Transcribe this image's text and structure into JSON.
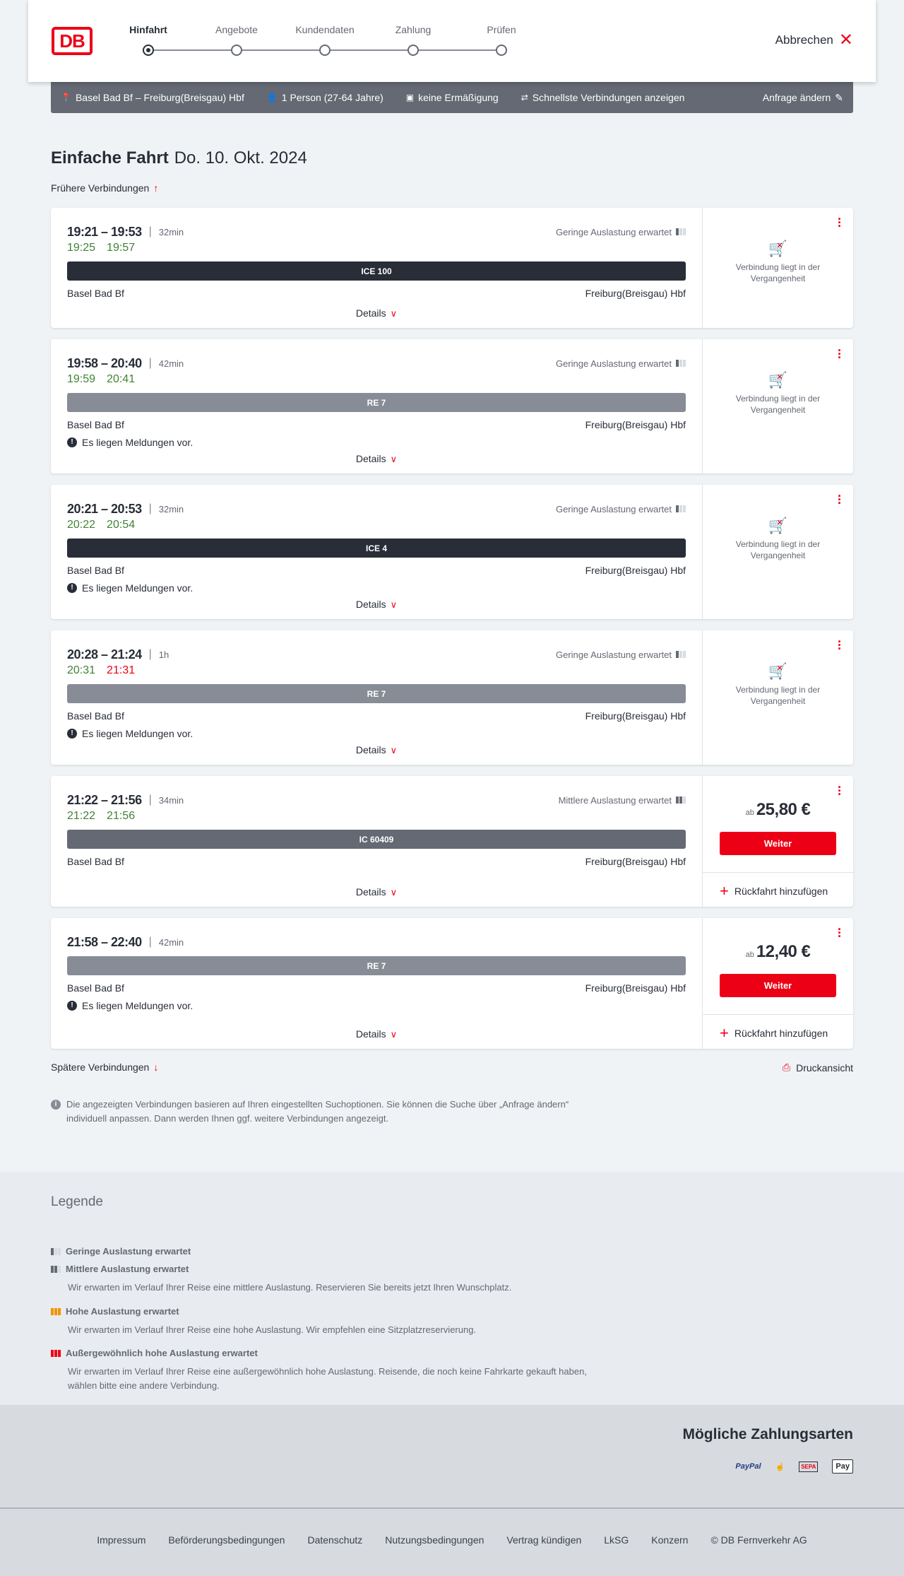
{
  "header": {
    "logo": "DB",
    "steps": [
      {
        "label": "Hinfahrt",
        "active": true
      },
      {
        "label": "Angebote",
        "active": false
      },
      {
        "label": "Kundendaten",
        "active": false
      },
      {
        "label": "Zahlung",
        "active": false
      },
      {
        "label": "Prüfen",
        "active": false
      }
    ],
    "cancel_label": "Abbrechen"
  },
  "infobar": {
    "route": "Basel Bad Bf – Freiburg(Breisgau) Hbf",
    "travellers": "1 Person (27-64 Jahre)",
    "discount": "keine Ermäßigung",
    "fastest": "Schnellste Verbindungen anzeigen",
    "edit": "Anfrage ändern"
  },
  "page": {
    "title": "Einfache Fahrt",
    "date": "Do. 10. Okt. 2024",
    "earlier": "Frühere Verbindungen",
    "later": "Spätere Verbindungen",
    "print": "Druckansicht",
    "note": "Die angezeigten Verbindungen basieren auf Ihren eingestellten Suchoptionen. Sie können die Suche über „Anfrage ändern“ individuell anpassen. Dann werden Ihnen ggf. weitere Verbindungen angezeigt."
  },
  "common": {
    "from": "Basel Bad Bf",
    "to": "Freiburg(Breisgau) Hbf",
    "details": "Details",
    "message": "Es liegen Meldungen vor.",
    "past": "Verbindung liegt in der Vergangenheit",
    "ab": "ab",
    "weiter": "Weiter",
    "return": "Rückfahrt hinzufügen"
  },
  "connections": [
    {
      "times": "19:21 – 19:53",
      "duration": "32min",
      "load": "Geringe Auslastung erwartet",
      "load_level": 1,
      "rt_dep": "19:25",
      "rt_arr": "19:57",
      "rt_arr_late": false,
      "train": "ICE 100",
      "train_color": "#282d37",
      "message": false,
      "past": true,
      "price": null
    },
    {
      "times": "19:58 – 20:40",
      "duration": "42min",
      "load": "Geringe Auslastung erwartet",
      "load_level": 1,
      "rt_dep": "19:59",
      "rt_arr": "20:41",
      "rt_arr_late": false,
      "train": "RE 7",
      "train_color": "#878c96",
      "message": true,
      "past": true,
      "price": null
    },
    {
      "times": "20:21 – 20:53",
      "duration": "32min",
      "load": "Geringe Auslastung erwartet",
      "load_level": 1,
      "rt_dep": "20:22",
      "rt_arr": "20:54",
      "rt_arr_late": false,
      "train": "ICE 4",
      "train_color": "#282d37",
      "message": true,
      "past": true,
      "price": null
    },
    {
      "times": "20:28 – 21:24",
      "duration": "1h",
      "load": "Geringe Auslastung erwartet",
      "load_level": 1,
      "rt_dep": "20:31",
      "rt_arr": "21:31",
      "rt_arr_late": true,
      "train": "RE 7",
      "train_color": "#878c96",
      "message": true,
      "past": true,
      "price": null
    },
    {
      "times": "21:22 – 21:56",
      "duration": "34min",
      "load": "Mittlere Auslastung erwartet",
      "load_level": 2,
      "rt_dep": "21:22",
      "rt_arr": "21:56",
      "rt_arr_late": false,
      "train": "IC 60409",
      "train_color": "#646973",
      "message": false,
      "past": false,
      "price": "25,80 €"
    },
    {
      "times": "21:58 – 22:40",
      "duration": "42min",
      "load": "",
      "load_level": 0,
      "rt_dep": "",
      "rt_arr": "",
      "rt_arr_late": false,
      "train": "RE 7",
      "train_color": "#878c96",
      "message": true,
      "past": false,
      "price": "12,40 €"
    }
  ],
  "legend": {
    "title": "Legende",
    "items": [
      {
        "title": "Geringe Auslastung erwartet",
        "desc": ""
      },
      {
        "title": "Mittlere Auslastung erwartet",
        "desc": "Wir erwarten im Verlauf Ihrer Reise eine mittlere Auslastung. Reservieren Sie bereits jetzt Ihren Wunschplatz."
      },
      {
        "title": "Hohe Auslastung erwartet",
        "desc": "Wir erwarten im Verlauf Ihrer Reise eine hohe Auslastung. Wir empfehlen eine Sitzplatzreservierung."
      },
      {
        "title": "Außergewöhnlich hohe Auslastung erwartet",
        "desc": "Wir erwarten im Verlauf Ihrer Reise eine außergewöhnlich hohe Auslastung. Reisende, die noch keine Fahrkarte gekauft haben, wählen bitte eine andere Verbindung."
      }
    ]
  },
  "payment": {
    "title": "Mögliche Zahlungsarten",
    "methods": [
      "PayPal",
      "Kreditkarte",
      "SEPA",
      "Pay"
    ]
  },
  "footer": {
    "links": [
      "Impressum",
      "Beförderungsbedingungen",
      "Datenschutz",
      "Nutzungsbedingungen",
      "Vertrag kündigen",
      "LkSG",
      "Konzern",
      "© DB Fernverkehr AG"
    ]
  },
  "colors": {
    "accent": "#ec0016",
    "realtime_ok": "#408335",
    "ice": "#282d37",
    "re": "#878c96",
    "ic": "#646973"
  }
}
